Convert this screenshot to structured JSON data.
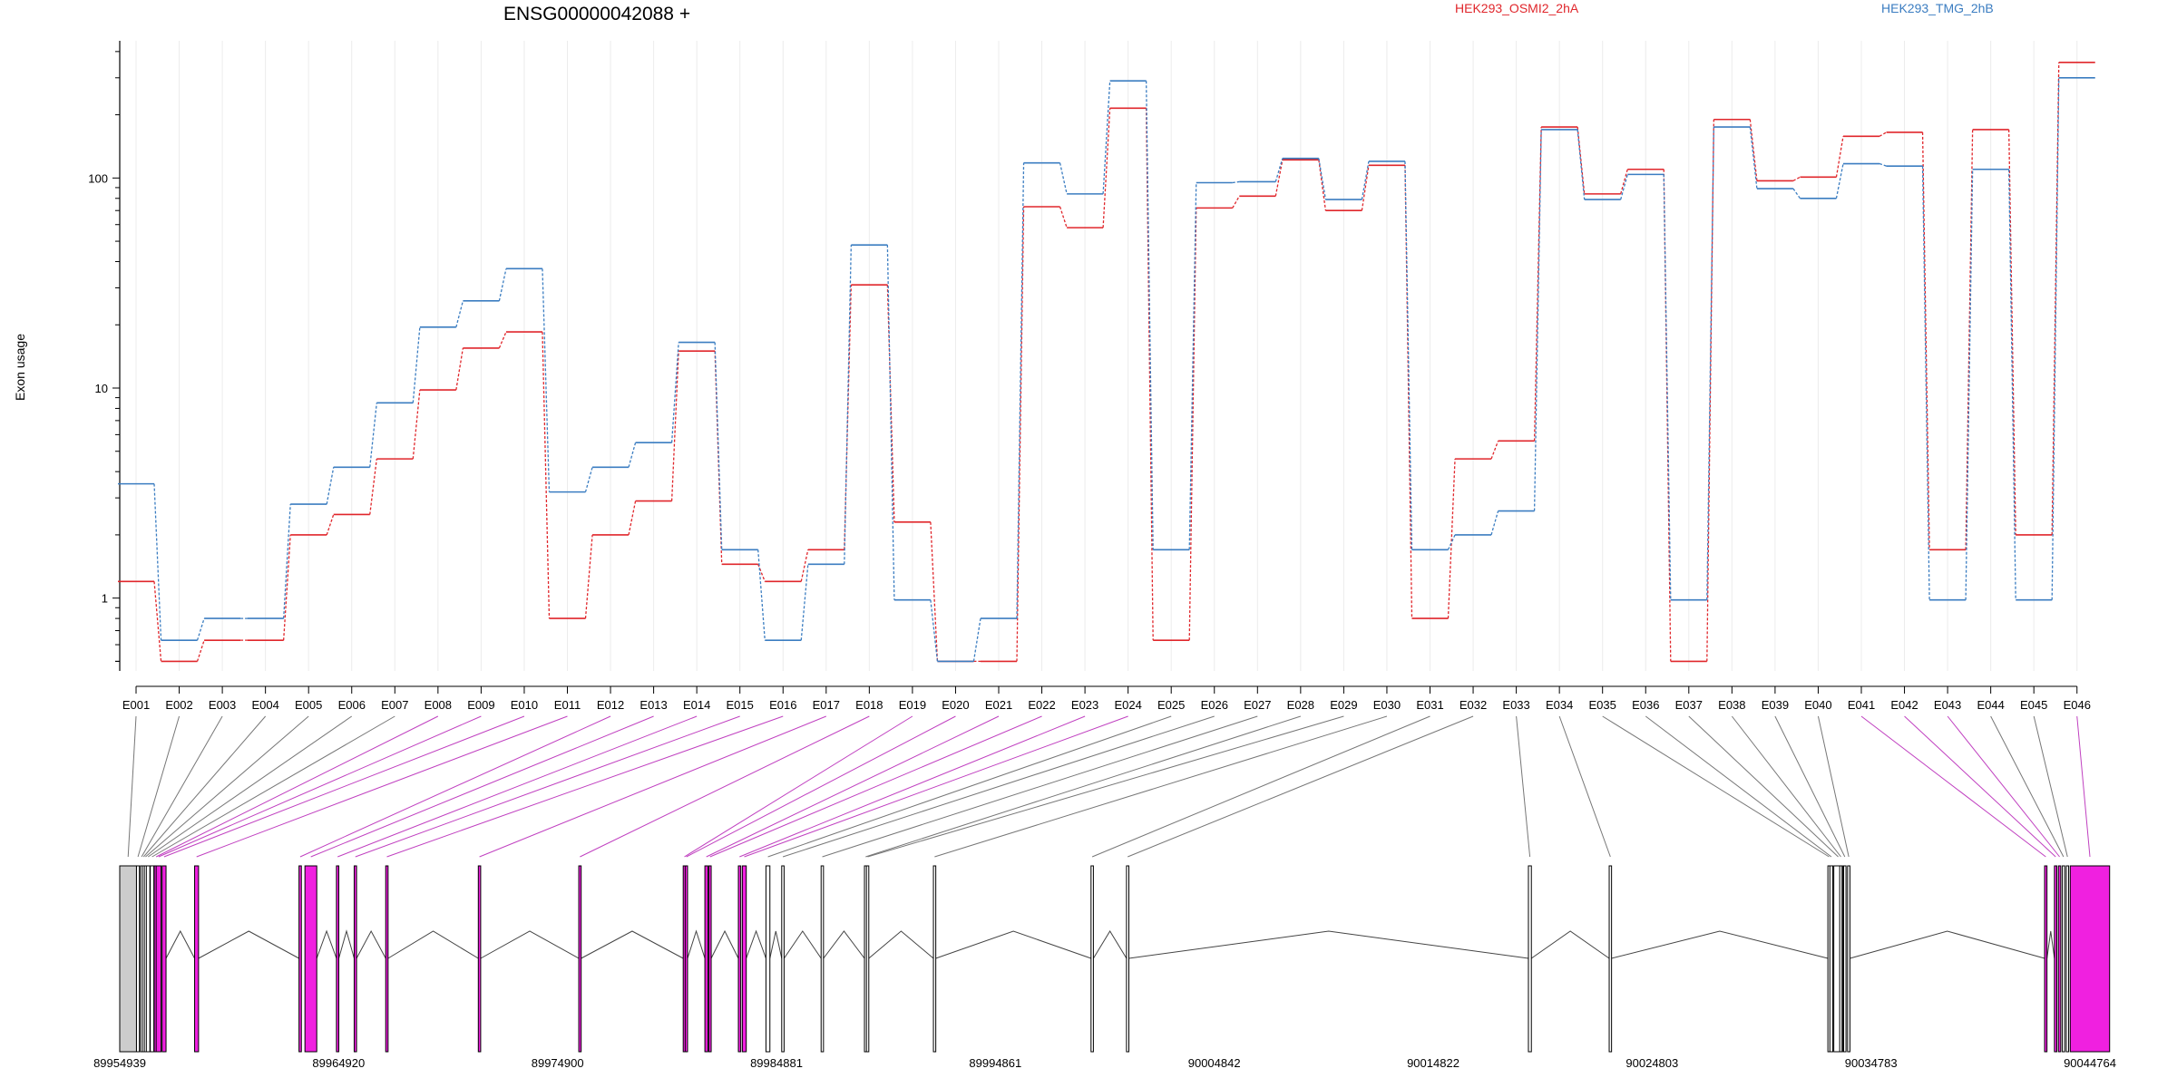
{
  "chart_data": {
    "type": "line",
    "title": "ENSG00000042088 +",
    "ylabel": "Exon usage",
    "yscale": "log",
    "ylim": [
      0.45,
      450
    ],
    "yticks": [
      {
        "value": 1,
        "label": "1"
      },
      {
        "value": 10,
        "label": "10"
      },
      {
        "value": 100,
        "label": "100"
      }
    ],
    "categories": [
      "E001",
      "E002",
      "E003",
      "E004",
      "E005",
      "E006",
      "E007",
      "E008",
      "E009",
      "E010",
      "E011",
      "E012",
      "E013",
      "E014",
      "E015",
      "E016",
      "E017",
      "E018",
      "E019",
      "E020",
      "E021",
      "E022",
      "E023",
      "E024",
      "E025",
      "E026",
      "E027",
      "E028",
      "E029",
      "E030",
      "E031",
      "E032",
      "E033",
      "E034",
      "E035",
      "E036",
      "E037",
      "E038",
      "E039",
      "E040",
      "E041",
      "E042",
      "E043",
      "E044",
      "E045",
      "E046"
    ],
    "series": [
      {
        "name": "HEK293_OSMI2_2hA",
        "color": "#e0262b",
        "values": [
          1.2,
          0.5,
          0.63,
          0.63,
          2.0,
          2.5,
          4.6,
          9.8,
          15.5,
          18.5,
          0.8,
          2.0,
          2.9,
          15.0,
          1.45,
          1.2,
          1.7,
          31,
          2.3,
          0.5,
          0.5,
          73,
          58,
          215,
          0.63,
          72,
          82,
          122,
          70,
          115,
          0.8,
          4.6,
          5.6,
          175,
          84,
          110,
          0.5,
          190,
          97,
          101,
          158,
          165,
          1.7,
          170,
          2.0,
          355
        ]
      },
      {
        "name": "HEK293_TMG_2hB",
        "color": "#3b7dc1",
        "values": [
          3.5,
          0.63,
          0.8,
          0.8,
          2.8,
          4.2,
          8.5,
          19.5,
          26,
          37,
          3.2,
          4.2,
          5.5,
          16.5,
          1.7,
          0.63,
          1.45,
          48,
          0.98,
          0.5,
          0.8,
          118,
          84,
          290,
          1.7,
          95,
          96,
          124,
          79,
          120,
          1.7,
          2.0,
          2.6,
          170,
          79,
          104,
          0.98,
          175,
          89,
          80,
          117,
          114,
          0.98,
          110,
          0.98,
          300
        ]
      }
    ],
    "gene_model": {
      "coord_labels": [
        "89954939",
        "89964920",
        "89974900",
        "89984881",
        "89994861",
        "90004842",
        "90014822",
        "90024803",
        "90034783",
        "90044764"
      ],
      "coord_range": [
        89954939,
        90044764
      ],
      "exon_color_highlight": "#f020e0",
      "exon_color_default": "#cccccc",
      "highlighted_exons": [
        "E008",
        "E009",
        "E010",
        "E011",
        "E012",
        "E013",
        "E014",
        "E015",
        "E016",
        "E017",
        "E018",
        "E019",
        "E020",
        "E021",
        "E022",
        "E023",
        "E024",
        "E041",
        "E042",
        "E043",
        "E046"
      ]
    }
  }
}
